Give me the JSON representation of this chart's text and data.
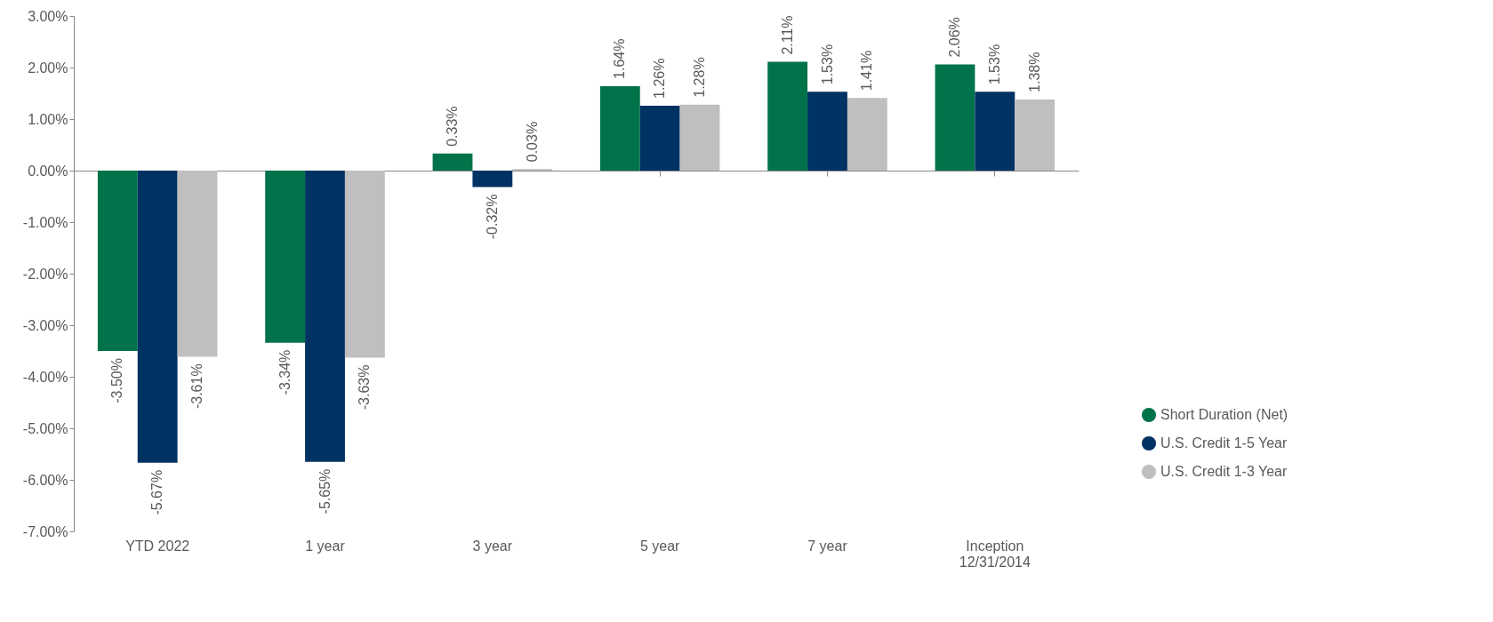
{
  "chart_data": {
    "type": "bar",
    "categories": [
      "YTD 2022",
      "1 year",
      "3 year",
      "5 year",
      "7 year",
      "Inception\n12/31/2014"
    ],
    "series": [
      {
        "name": "Short Duration (Net)",
        "color": "#00734a",
        "values": [
          -3.5,
          -3.34,
          0.33,
          1.64,
          2.11,
          2.06
        ],
        "value_labels": [
          "-3.50%",
          "-3.34%",
          "0.33%",
          "1.64%",
          "2.11%",
          "2.06%"
        ]
      },
      {
        "name": "U.S. Credit 1-5 Year",
        "color": "#003263",
        "values": [
          -5.67,
          -5.65,
          -0.32,
          1.26,
          1.53,
          1.53
        ],
        "value_labels": [
          "-5.67%",
          "-5.65%",
          "-0.32%",
          "1.26%",
          "1.53%",
          "1.53%"
        ]
      },
      {
        "name": "U.S. Credit 1-3 Year",
        "color": "#bfbfbf",
        "values": [
          -3.61,
          -3.63,
          0.03,
          1.28,
          1.41,
          1.38
        ],
        "value_labels": [
          "-3.61%",
          "-3.63%",
          "0.03%",
          "1.28%",
          "1.41%",
          "1.38%"
        ]
      }
    ],
    "ylim": [
      -7,
      3
    ],
    "yticks": [
      {
        "value": -7,
        "label": "-7.00%"
      },
      {
        "value": -6,
        "label": "-6.00%"
      },
      {
        "value": -5,
        "label": "-5.00%"
      },
      {
        "value": -4,
        "label": "-4.00%"
      },
      {
        "value": -3,
        "label": "-3.00%"
      },
      {
        "value": -2,
        "label": "-2.00%"
      },
      {
        "value": -1,
        "label": "-1.00%"
      },
      {
        "value": 0,
        "label": "0.00%"
      },
      {
        "value": 1,
        "label": "1.00%"
      },
      {
        "value": 2,
        "label": "2.00%"
      },
      {
        "value": 3,
        "label": "3.00%"
      }
    ],
    "legend": "right"
  }
}
